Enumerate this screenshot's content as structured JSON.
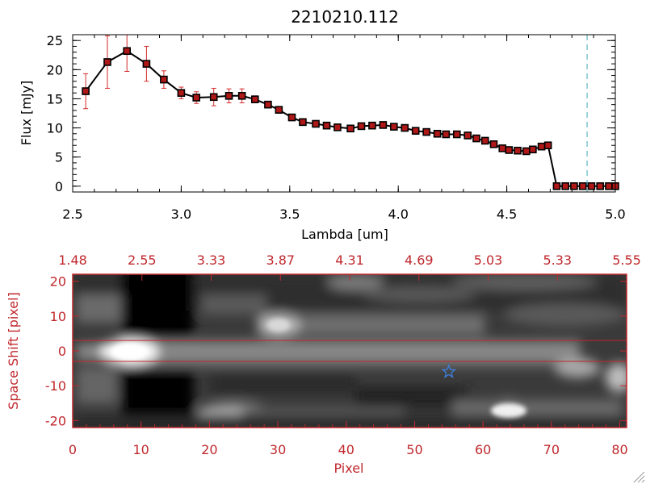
{
  "chart_data": [
    {
      "type": "line",
      "title": "2210210.112",
      "xlabel": "Lambda [um]",
      "ylabel": "Flux [mJy]",
      "xlim": [
        2.5,
        5.0
      ],
      "ylim": [
        -1,
        26
      ],
      "x_ticks": [
        "2.5",
        "3.0",
        "3.5",
        "4.0",
        "4.5",
        "5.0"
      ],
      "y_ticks": [
        "0",
        "5",
        "10",
        "15",
        "20",
        "25"
      ],
      "marker_line_x": 4.87,
      "series": [
        {
          "x": [
            2.56,
            2.66,
            2.75,
            2.84,
            2.92,
            3.0,
            3.07,
            3.15,
            3.22,
            3.28,
            3.34,
            3.4,
            3.45,
            3.51,
            3.56,
            3.62,
            3.67,
            3.72,
            3.78,
            3.83,
            3.88,
            3.93,
            3.98,
            4.03,
            4.08,
            4.13,
            4.18,
            4.22,
            4.27,
            4.32,
            4.36,
            4.4,
            4.44,
            4.48,
            4.51,
            4.55,
            4.59,
            4.62,
            4.66,
            4.69,
            4.73,
            4.77,
            4.81,
            4.85,
            4.89,
            4.93,
            4.97,
            5.0
          ],
          "y": [
            16.3,
            21.3,
            23.2,
            21.0,
            18.3,
            16.0,
            15.2,
            15.3,
            15.5,
            15.5,
            14.9,
            14.0,
            13.1,
            11.8,
            11.0,
            10.7,
            10.4,
            10.1,
            9.9,
            10.3,
            10.4,
            10.5,
            10.2,
            10.0,
            9.5,
            9.3,
            9.0,
            8.9,
            8.9,
            8.7,
            8.2,
            7.8,
            7.2,
            6.5,
            6.2,
            6.1,
            6.0,
            6.3,
            6.8,
            7.0,
            0,
            0,
            0,
            0,
            0,
            0,
            0,
            0
          ],
          "yerr": [
            3,
            4.5,
            3.5,
            3,
            1.5,
            1,
            1,
            1.5,
            1.2,
            1.2,
            0.6,
            0.5,
            0.4,
            0.3,
            0.3,
            0.3,
            0.3,
            0.3,
            0.3,
            0.3,
            0.3,
            0.3,
            0.3,
            0.3,
            0.3,
            0.3,
            0.3,
            0.3,
            0.3,
            0.3,
            0.3,
            0.3,
            0.3,
            0.3,
            0.3,
            0.3,
            0.3,
            0.3,
            0.3,
            0.3,
            0.5,
            0.5,
            0.5,
            0.5,
            0.5,
            0.5,
            0.5,
            0.5
          ]
        }
      ]
    },
    {
      "type": "heatmap",
      "xlabel": "Pixel",
      "ylabel": "Space Shift [pixel]",
      "xlim": [
        0,
        81
      ],
      "ylim": [
        -22,
        22
      ],
      "x_ticks": [
        "0",
        "10",
        "20",
        "30",
        "40",
        "50",
        "60",
        "70",
        "80"
      ],
      "y_ticks": [
        "-20",
        "-10",
        "0",
        "10",
        "20"
      ],
      "top_axis_ticks": [
        "1.48",
        "2.55",
        "3.33",
        "3.87",
        "4.31",
        "4.69",
        "5.03",
        "5.33",
        "5.55"
      ],
      "extraction_band": [
        -3,
        3
      ],
      "star_marker": {
        "x": 55,
        "y": -6
      },
      "color_accent": "#c0282d",
      "color_star": "#3f7fdf"
    }
  ]
}
